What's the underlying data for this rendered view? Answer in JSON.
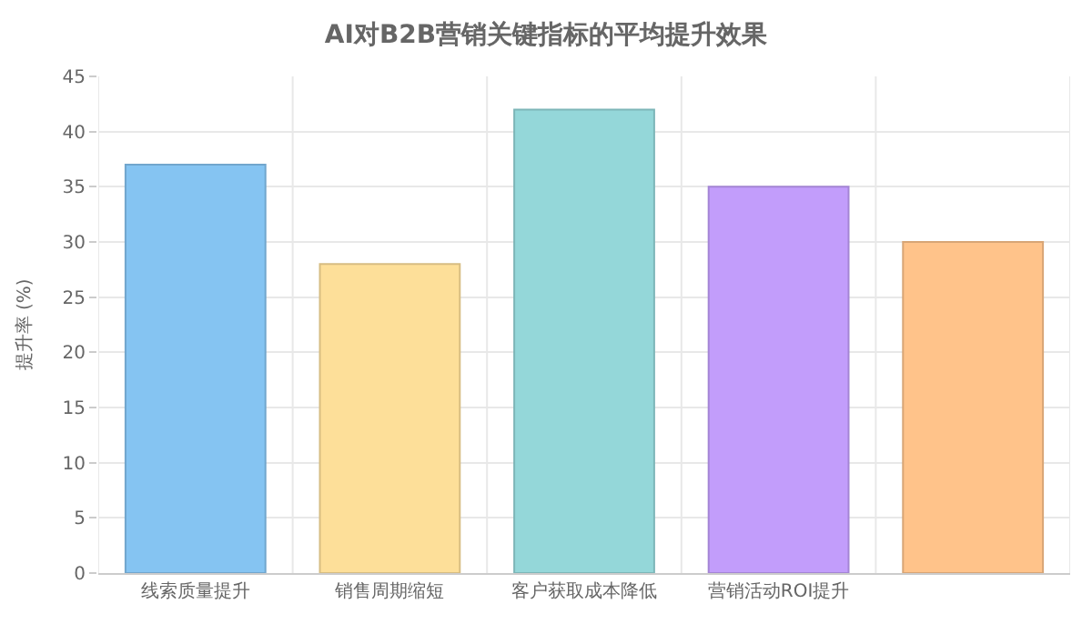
{
  "chart_data": {
    "type": "bar",
    "title": "AI对B2B营销关键指标的平均提升效果",
    "ylabel": "提升率 (%)",
    "categories": [
      "线索质量提升",
      "销售周期缩短",
      "客户获取成本降低",
      "营销活动ROI提升",
      null
    ],
    "values": [
      37,
      28,
      42,
      35,
      30
    ],
    "colors": [
      "#85c4f2",
      "#fddf99",
      "#94d7d9",
      "#c29dfb",
      "#ffc38a"
    ],
    "ylim": [
      0,
      45
    ],
    "yticks": [
      0,
      5,
      10,
      15,
      20,
      25,
      30,
      35,
      40,
      45
    ],
    "grid": true,
    "legend": false
  }
}
